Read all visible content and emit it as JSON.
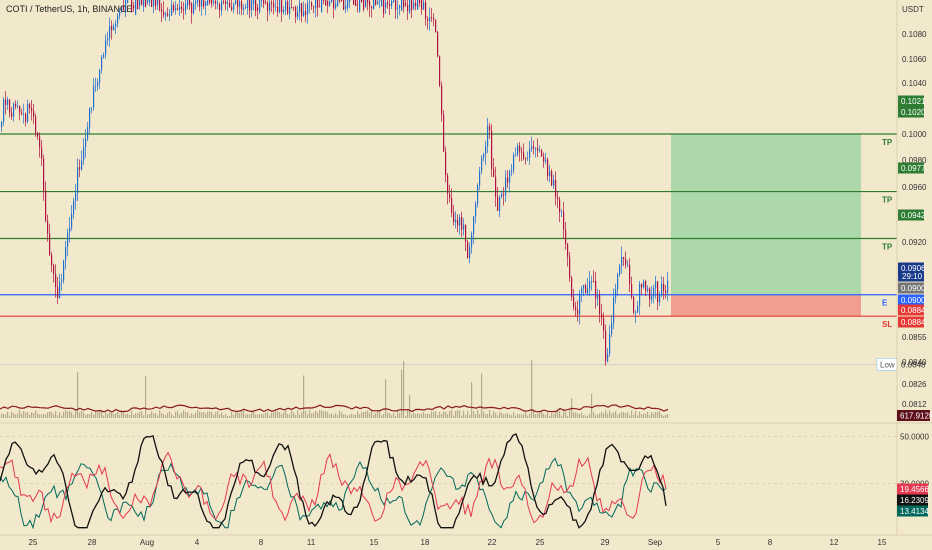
{
  "header": {
    "symbol_title": "COTI / TetherUS, 1h, BINANCE",
    "currency": "USDT"
  },
  "chart_data": {
    "type": "candlestick",
    "price_axis": {
      "range": [
        0.0805,
        0.112
      ],
      "ticks": [
        "0.1080",
        "0.1060",
        "0.1040",
        "0.1000",
        "0.0980",
        "0.0960",
        "0.0920",
        "0.0855",
        "0.0840",
        "0.0826",
        "0.0812"
      ]
    },
    "indicator_axis": {
      "range": [
        10,
        55
      ],
      "ticks": [
        "50.0000",
        "30.0000"
      ]
    },
    "x_axis": {
      "labels": [
        "25",
        "28",
        "Aug",
        "4",
        "8",
        "11",
        "15",
        "18",
        "22",
        "25",
        "29",
        "Sep",
        "5",
        "8",
        "12",
        "15"
      ]
    },
    "levels": [
      {
        "name": "TP",
        "price": 0.102,
        "label": "0.1020",
        "color": "#2e7d32"
      },
      {
        "name": "TP",
        "price": 0.0977,
        "label": "0.0977",
        "color": "#2e7d32"
      },
      {
        "name": "TP",
        "price": 0.0942,
        "label": "0.0942",
        "color": "#2e7d32"
      },
      {
        "name": "E",
        "price": 0.09,
        "label": "0.0900",
        "color": "#2962ff"
      },
      {
        "name": "SL",
        "price": 0.0884,
        "label": "0.0884",
        "color": "#e53935"
      }
    ],
    "price_tags": [
      {
        "label": "0.1021",
        "price": 0.1021,
        "bg": "#2e7d32"
      },
      {
        "label": "0.1020",
        "price": 0.102,
        "bg": "#2e7d32"
      },
      {
        "label": "0.0977",
        "price": 0.0977,
        "bg": "#2e7d32"
      },
      {
        "label": "0.0942",
        "price": 0.0942,
        "bg": "#2e7d32"
      },
      {
        "label": "0.0906",
        "price": 0.0906,
        "bg": "#1a3a8a",
        "sub": "29:10"
      },
      {
        "label": "0.0900",
        "price": 0.09,
        "bg": "#777777"
      },
      {
        "label": "0.0900",
        "price": 0.09,
        "bg": "#2962ff"
      },
      {
        "label": "0.0884",
        "price": 0.0884,
        "bg": "#e53935"
      },
      {
        "label": "0.0884",
        "price": 0.0884,
        "bg": "#e53935"
      }
    ],
    "low_marker": {
      "text": "Low",
      "value": "0.0848",
      "price": 0.0848
    },
    "volume_tag": "617.912K",
    "indicator_tags": [
      {
        "label": "19.4566",
        "bg": "#e53950"
      },
      {
        "label": "16.2309",
        "bg": "#111111"
      },
      {
        "label": "13.4134",
        "bg": "#00695c"
      }
    ],
    "position": {
      "entry": 0.09,
      "target": 0.102,
      "stop": 0.0884,
      "profit_color": "#a5d6a7",
      "loss_color": "#ef9a8a"
    },
    "price_path": [
      [
        0,
        0.1025
      ],
      [
        4,
        0.105
      ],
      [
        10,
        0.1035
      ],
      [
        16,
        0.1045
      ],
      [
        22,
        0.103
      ],
      [
        28,
        0.104
      ],
      [
        34,
        0.1025
      ],
      [
        38,
        0.102
      ],
      [
        42,
        0.099
      ],
      [
        46,
        0.095
      ],
      [
        50,
        0.0925
      ],
      [
        54,
        0.0905
      ],
      [
        58,
        0.09
      ],
      [
        62,
        0.0915
      ],
      [
        66,
        0.0935
      ],
      [
        70,
        0.096
      ],
      [
        74,
        0.0975
      ],
      [
        78,
        0.0995
      ],
      [
        84,
        0.1015
      ],
      [
        90,
        0.104
      ],
      [
        96,
        0.106
      ],
      [
        102,
        0.108
      ],
      [
        108,
        0.1095
      ],
      [
        114,
        0.1105
      ],
      [
        120,
        0.1115
      ],
      [
        130,
        0.112
      ],
      [
        150,
        0.1118
      ],
      [
        170,
        0.1112
      ],
      [
        200,
        0.1118
      ],
      [
        230,
        0.1115
      ],
      [
        260,
        0.1117
      ],
      [
        295,
        0.1112
      ],
      [
        320,
        0.1118
      ],
      [
        360,
        0.112
      ],
      [
        400,
        0.1118
      ],
      [
        418,
        0.1117
      ],
      [
        426,
        0.111
      ],
      [
        432,
        0.1105
      ],
      [
        436,
        0.109
      ],
      [
        440,
        0.104
      ],
      [
        444,
        0.1
      ],
      [
        448,
        0.097
      ],
      [
        452,
        0.096
      ],
      [
        456,
        0.095
      ],
      [
        460,
        0.0955
      ],
      [
        464,
        0.0945
      ],
      [
        468,
        0.0925
      ],
      [
        472,
        0.0955
      ],
      [
        476,
        0.0975
      ],
      [
        480,
        0.0995
      ],
      [
        484,
        0.1005
      ],
      [
        488,
        0.103
      ],
      [
        492,
        0.099
      ],
      [
        496,
        0.096
      ],
      [
        502,
        0.0975
      ],
      [
        508,
        0.099
      ],
      [
        514,
        0.1005
      ],
      [
        520,
        0.101
      ],
      [
        526,
        0.1
      ],
      [
        532,
        0.1015
      ],
      [
        538,
        0.101
      ],
      [
        544,
        0.1
      ],
      [
        550,
        0.0985
      ],
      [
        556,
        0.0975
      ],
      [
        562,
        0.096
      ],
      [
        566,
        0.093
      ],
      [
        570,
        0.09
      ],
      [
        574,
        0.088
      ],
      [
        578,
        0.0895
      ],
      [
        582,
        0.091
      ],
      [
        586,
        0.09
      ],
      [
        590,
        0.0915
      ],
      [
        594,
        0.0905
      ],
      [
        598,
        0.0895
      ],
      [
        602,
        0.0875
      ],
      [
        606,
        0.085
      ],
      [
        610,
        0.087
      ],
      [
        614,
        0.09
      ],
      [
        618,
        0.0925
      ],
      [
        622,
        0.0935
      ],
      [
        626,
        0.0925
      ],
      [
        630,
        0.0905
      ],
      [
        634,
        0.0885
      ],
      [
        638,
        0.09
      ],
      [
        642,
        0.091
      ],
      [
        646,
        0.0905
      ],
      [
        650,
        0.09
      ],
      [
        654,
        0.091
      ],
      [
        658,
        0.0895
      ],
      [
        662,
        0.0905
      ],
      [
        668,
        0.0906
      ]
    ],
    "series": [
      {
        "name": "",
        "color": "#111111"
      },
      {
        "name": "",
        "color": "#e53950"
      },
      {
        "name": "",
        "color": "#00695c"
      }
    ]
  }
}
